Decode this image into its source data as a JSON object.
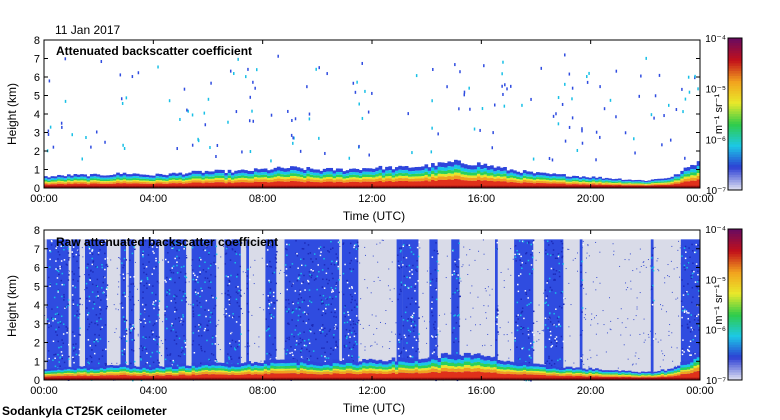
{
  "header": {
    "date": "11 Jan 2017"
  },
  "footer": {
    "instrument": "Sodankyla CT25K ceilometer"
  },
  "chart_data": [
    {
      "type": "heatmap",
      "title": "Attenuated backscatter coefficient",
      "xlabel": "Time (UTC)",
      "ylabel": "Height (km)",
      "xlim_hours": [
        0,
        24
      ],
      "ylim": [
        0,
        8
      ],
      "x_ticks": [
        "00:00",
        "04:00",
        "08:00",
        "12:00",
        "16:00",
        "20:00",
        "00:00"
      ],
      "y_ticks": [
        "0",
        "1",
        "2",
        "3",
        "4",
        "5",
        "6",
        "7",
        "8"
      ],
      "boundary_layer_top_km": [
        0.6,
        0.7,
        0.7,
        0.8,
        0.7,
        0.8,
        0.9,
        0.9,
        1.0,
        1.1,
        1.0,
        1.0,
        1.1,
        1.1,
        1.2,
        1.4,
        1.3,
        1.0,
        0.8,
        0.7,
        0.6,
        0.5,
        0.4,
        0.6,
        1.5
      ],
      "colorbar": {
        "label": "m⁻¹ sr⁻¹",
        "ticks": [
          "10⁻⁴",
          "10⁻⁵",
          "10⁻⁶",
          "10⁻⁷"
        ]
      }
    },
    {
      "type": "heatmap",
      "title": "Raw attenuated backscatter coefficient",
      "xlabel": "Time (UTC)",
      "ylabel": "Height (km)",
      "xlim_hours": [
        0,
        24
      ],
      "ylim": [
        0,
        8
      ],
      "x_ticks": [
        "00:00",
        "04:00",
        "08:00",
        "12:00",
        "16:00",
        "20:00",
        "00:00"
      ],
      "y_ticks": [
        "0",
        "1",
        "2",
        "3",
        "4",
        "5",
        "6",
        "7",
        "8"
      ],
      "noisy_periods_hours": [
        [
          0.1,
          0.9
        ],
        [
          1.0,
          1.3
        ],
        [
          1.5,
          2.3
        ],
        [
          2.8,
          3.0
        ],
        [
          3.1,
          3.3
        ],
        [
          3.5,
          4.2
        ],
        [
          4.4,
          5.2
        ],
        [
          5.4,
          6.3
        ],
        [
          6.6,
          7.2
        ],
        [
          7.4,
          7.5
        ],
        [
          8.1,
          8.5
        ],
        [
          8.8,
          10.8
        ],
        [
          10.9,
          11.5
        ],
        [
          12.9,
          13.1
        ],
        [
          13.1,
          13.7
        ],
        [
          14.1,
          14.4
        ],
        [
          14.9,
          15.2
        ],
        [
          16.5,
          16.6
        ],
        [
          17.2,
          17.9
        ],
        [
          18.3,
          19.0
        ],
        [
          19.6,
          19.7
        ],
        [
          22.2,
          22.3
        ],
        [
          23.3,
          24.0
        ]
      ],
      "boundary_layer_top_km": [
        0.6,
        0.7,
        0.7,
        0.8,
        0.7,
        0.8,
        0.9,
        0.9,
        1.0,
        1.1,
        1.0,
        1.0,
        1.1,
        1.1,
        1.2,
        1.4,
        1.3,
        1.0,
        0.8,
        0.7,
        0.6,
        0.5,
        0.4,
        0.6,
        1.5
      ],
      "colorbar": {
        "label": "m⁻¹ sr⁻¹",
        "ticks": [
          "10⁻⁴",
          "10⁻⁵",
          "10⁻⁶",
          "10⁻⁷"
        ]
      }
    }
  ]
}
